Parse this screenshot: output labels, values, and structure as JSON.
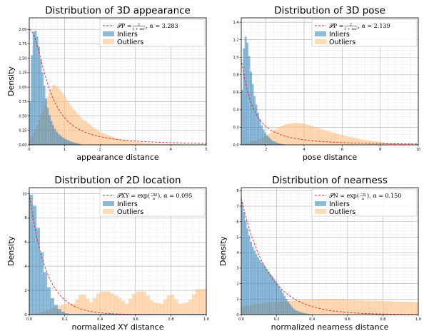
{
  "colors": {
    "inliers": "#1f77b4",
    "outliers": "#ffbb78",
    "curve": "#d62728",
    "grid": "#b0b0b0"
  },
  "chart_data": [
    {
      "type": "bar",
      "title": "Distribution of 3D appearance",
      "xlabel": "appearance distance",
      "ylabel": "Density",
      "xlim": [
        0,
        5
      ],
      "ylim": [
        0,
        2.2
      ],
      "xticks": [
        "0",
        "1",
        "2",
        "3",
        "4",
        "5"
      ],
      "yticks": [
        "0.00",
        "0.25",
        "0.50",
        "0.75",
        "1.00",
        "1.25",
        "1.50",
        "1.75",
        "2.00"
      ],
      "legend_position": "top-right",
      "legend": {
        "curve": "𝒫P = 2/(1 + αx²), α = 3.283",
        "curve_math": "𝒫P = ",
        "curve_num": "2",
        "curve_den": "1 + αx²",
        "curve_tail": ", α = 3.283",
        "inliers": "Inliers",
        "outliers": "Outliers"
      },
      "curve": {
        "form": "2/(1+a*x^2)",
        "alpha": 3.283
      },
      "series": [
        {
          "name": "Inliers",
          "x": [
            0,
            0.05,
            0.1,
            0.15,
            0.2,
            0.25,
            0.3,
            0.35,
            0.4,
            0.45,
            0.5,
            0.6,
            0.7,
            0.8,
            1.0,
            1.2,
            1.5
          ],
          "y": [
            0.3,
            1.2,
            1.9,
            2.0,
            1.95,
            1.8,
            1.6,
            1.35,
            1.15,
            0.9,
            0.7,
            0.45,
            0.3,
            0.2,
            0.1,
            0.05,
            0.0
          ]
        },
        {
          "name": "Outliers",
          "x": [
            0,
            0.2,
            0.4,
            0.6,
            0.7,
            0.8,
            1.0,
            1.2,
            1.5,
            2.0,
            2.5,
            3.0,
            3.5,
            4.0,
            5.0
          ],
          "y": [
            0.05,
            0.3,
            0.65,
            0.95,
            1.05,
            1.0,
            0.85,
            0.65,
            0.45,
            0.22,
            0.1,
            0.05,
            0.02,
            0.01,
            0.0
          ]
        }
      ]
    },
    {
      "type": "bar",
      "title": "Distribution of 3D pose",
      "xlabel": "pose distance",
      "ylabel": "",
      "xlim": [
        0.7,
        10
      ],
      "ylim": [
        0,
        1.45
      ],
      "xticks": [
        "2",
        "4",
        "6",
        "8",
        "10"
      ],
      "yticks": [
        "0.0",
        "0.2",
        "0.4",
        "0.6",
        "0.8",
        "1.0",
        "1.2",
        "1.4"
      ],
      "legend_position": "top-right",
      "legend": {
        "curve": "𝒫P = 2/(1 + αx²), α = 2.139",
        "curve_math": "𝒫P = ",
        "curve_num": "2",
        "curve_den": "1 + αx²",
        "curve_tail": ", α = 2.139",
        "inliers": "Inliers",
        "outliers": "Outliers"
      },
      "curve": {
        "form": "2/(1+a*x^2)",
        "alpha": 2.139
      },
      "series": [
        {
          "name": "Inliers",
          "x": [
            0.7,
            0.8,
            0.9,
            1.0,
            1.1,
            1.2,
            1.4,
            1.6,
            1.8,
            2.0,
            2.3,
            2.6,
            3.0
          ],
          "y": [
            0.3,
            1.0,
            1.25,
            1.2,
            1.05,
            0.85,
            0.55,
            0.35,
            0.2,
            0.12,
            0.05,
            0.02,
            0.0
          ]
        },
        {
          "name": "Outliers",
          "x": [
            0.7,
            1.0,
            1.5,
            2.0,
            2.5,
            3.0,
            3.5,
            4.0,
            4.5,
            5.0,
            6.0,
            7.0,
            8.0,
            9.0,
            10.0
          ],
          "y": [
            0.0,
            0.02,
            0.05,
            0.1,
            0.18,
            0.23,
            0.25,
            0.24,
            0.21,
            0.17,
            0.11,
            0.06,
            0.03,
            0.01,
            0.0
          ]
        }
      ]
    },
    {
      "type": "bar",
      "title": "Distribution of 2D location",
      "xlabel": "normalized XY distance",
      "ylabel": "Density",
      "xlim": [
        0,
        1
      ],
      "ylim": [
        0,
        10.5
      ],
      "xticks": [
        "0.0",
        "0.2",
        "0.4",
        "0.6",
        "0.8",
        "1.0"
      ],
      "yticks": [
        "0",
        "2",
        "4",
        "6",
        "8",
        "10"
      ],
      "legend_position": "top-right",
      "legend": {
        "curve": "𝒫XY = exp(−xy/α), α = 0.095",
        "curve_math": "𝒫XY = exp(",
        "curve_num": "−xy",
        "curve_den": "α",
        "curve_tail": "), α = 0.095",
        "inliers": "Inliers",
        "outliers": "Outliers"
      },
      "curve": {
        "form": "10*exp(-x/a)",
        "alpha": 0.095
      },
      "series": [
        {
          "name": "Inliers",
          "x": [
            0.0,
            0.02,
            0.04,
            0.06,
            0.08,
            0.1,
            0.12,
            0.14,
            0.16,
            0.18,
            0.2,
            0.22
          ],
          "y": [
            10.0,
            9.8,
            8.2,
            6.1,
            4.2,
            2.8,
            1.7,
            1.0,
            0.6,
            0.3,
            0.15,
            0.05
          ]
        },
        {
          "name": "Outliers",
          "x": [
            0.0,
            0.1,
            0.2,
            0.25,
            0.3,
            0.35,
            0.4,
            0.45,
            0.5,
            0.55,
            0.6,
            0.65,
            0.7,
            0.75,
            0.8,
            0.85,
            0.9,
            0.95
          ],
          "y": [
            0.0,
            0.3,
            0.9,
            0.9,
            1.8,
            1.0,
            1.9,
            1.9,
            1.5,
            0.9,
            1.9,
            1.9,
            1.0,
            0.9,
            1.8,
            0.9,
            1.0,
            2.1
          ]
        }
      ]
    },
    {
      "type": "bar",
      "title": "Distribution of nearness",
      "xlabel": "normalized nearness distance",
      "ylabel": "Density",
      "xlim": [
        0,
        1
      ],
      "ylim": [
        0,
        8.2
      ],
      "xticks": [
        "0.0",
        "0.2",
        "0.4",
        "0.6",
        "0.8",
        "1.0"
      ],
      "yticks": [
        "0",
        "1",
        "2",
        "3",
        "4",
        "5",
        "6",
        "7",
        "8"
      ],
      "legend_position": "top-right",
      "legend": {
        "curve": "𝒫N = exp(−n/α), α = 0.150",
        "curve_math": "𝒫N = exp(",
        "curve_num": "−n",
        "curve_den": "α",
        "curve_tail": "), α = 0.150",
        "inliers": "Inliers",
        "outliers": "Outliers"
      },
      "curve": {
        "form": "7.5*exp(-x/a)",
        "alpha": 0.15
      },
      "series": [
        {
          "name": "Inliers",
          "x": [
            0.0,
            0.02,
            0.04,
            0.06,
            0.08,
            0.1,
            0.14,
            0.18,
            0.22,
            0.26,
            0.3,
            0.35,
            0.4
          ],
          "y": [
            7.6,
            6.3,
            5.3,
            4.5,
            4.0,
            3.6,
            3.0,
            2.4,
            1.7,
            0.9,
            0.3,
            0.1,
            0.0
          ]
        },
        {
          "name": "Outliers",
          "x": [
            0.0,
            0.1,
            0.2,
            0.3,
            0.4,
            0.5,
            0.6,
            0.7,
            0.8,
            0.9,
            1.0
          ],
          "y": [
            0.5,
            0.7,
            0.8,
            0.9,
            0.95,
            1.0,
            0.95,
            0.9,
            0.88,
            0.82,
            0.8
          ]
        }
      ]
    }
  ]
}
